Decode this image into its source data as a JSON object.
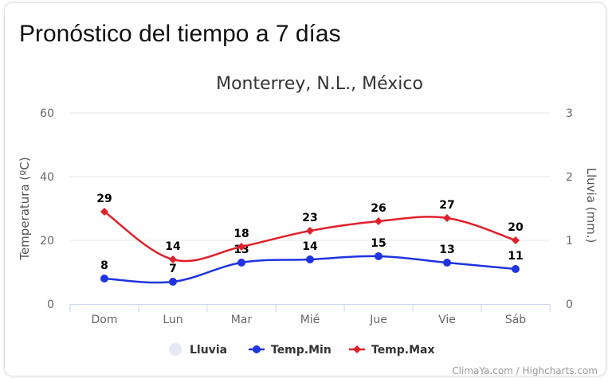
{
  "page": {
    "heading": "Pronóstico del tiempo a 7 días"
  },
  "chart_data": {
    "type": "line",
    "title": "Monterrey, N.L., México",
    "categories": [
      "Dom",
      "Lun",
      "Mar",
      "Mié",
      "Jue",
      "Vie",
      "Sáb"
    ],
    "y_left": {
      "label": "Temperatura (ºC)",
      "ticks": [
        "0",
        "20",
        "40",
        "60"
      ],
      "range": [
        0,
        60
      ]
    },
    "y_right": {
      "label": "Lluvia (mm.)",
      "ticks": [
        "0",
        "1",
        "2",
        "3"
      ],
      "range": [
        0,
        3
      ]
    },
    "series": [
      {
        "name": "Lluvia",
        "axis": "right",
        "values": [
          0,
          0,
          0,
          0,
          0,
          0,
          0
        ],
        "color": "#e6e8f5"
      },
      {
        "name": "Temp.Min",
        "axis": "left",
        "values": [
          8,
          7,
          13,
          14,
          15,
          13,
          11
        ],
        "color": "#1f33e0"
      },
      {
        "name": "Temp.Max",
        "axis": "left",
        "values": [
          29,
          14,
          18,
          23,
          26,
          27,
          20
        ],
        "color": "#e0202a"
      }
    ],
    "legend": "bottom-center",
    "grid": true,
    "credits": "ClimaYa.com / Highcharts.com"
  }
}
